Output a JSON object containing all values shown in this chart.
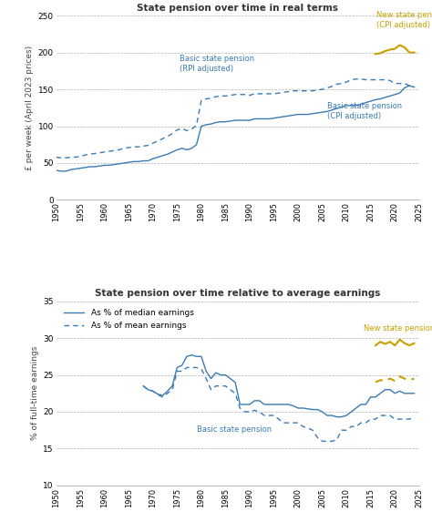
{
  "title1": "State pension over time in real terms",
  "title2": "State pension over time relative to average earnings",
  "ylabel1": "£ per week (April 2023 prices)",
  "ylabel2": "% of full-time earnings",
  "blue_color": "#3a7ab5",
  "gold_color": "#c8a000",
  "xlim": [
    1950,
    2025
  ],
  "ylim1": [
    0,
    250
  ],
  "ylim2": [
    10,
    35
  ],
  "yticks1": [
    0,
    50,
    100,
    150,
    200,
    250
  ],
  "yticks2": [
    10,
    15,
    20,
    25,
    30,
    35
  ],
  "xticks": [
    1950,
    1955,
    1960,
    1965,
    1970,
    1975,
    1980,
    1985,
    1990,
    1995,
    2000,
    2005,
    2010,
    2015,
    2020,
    2025
  ],
  "basic_cpi_x": [
    1950,
    1951,
    1952,
    1953,
    1954,
    1955,
    1956,
    1957,
    1958,
    1959,
    1960,
    1961,
    1962,
    1963,
    1964,
    1965,
    1966,
    1967,
    1968,
    1969,
    1970,
    1971,
    1972,
    1973,
    1974,
    1975,
    1976,
    1977,
    1978,
    1979,
    1980,
    1981,
    1982,
    1983,
    1984,
    1985,
    1986,
    1987,
    1988,
    1989,
    1990,
    1991,
    1992,
    1993,
    1994,
    1995,
    1996,
    1997,
    1998,
    1999,
    2000,
    2001,
    2002,
    2003,
    2004,
    2005,
    2006,
    2007,
    2008,
    2009,
    2010,
    2011,
    2012,
    2013,
    2014,
    2015,
    2016,
    2017,
    2018,
    2019,
    2020,
    2021,
    2022,
    2023,
    2024
  ],
  "basic_cpi_y": [
    40,
    39,
    39,
    41,
    42,
    43,
    44,
    45,
    45,
    46,
    47,
    47,
    48,
    49,
    50,
    51,
    52,
    52,
    53,
    53,
    56,
    58,
    60,
    62,
    65,
    68,
    70,
    68,
    70,
    75,
    100,
    102,
    103,
    105,
    106,
    106,
    107,
    108,
    108,
    108,
    108,
    110,
    110,
    110,
    110,
    111,
    112,
    113,
    114,
    115,
    116,
    116,
    116,
    117,
    118,
    119,
    120,
    122,
    124,
    126,
    128,
    128,
    128,
    130,
    132,
    134,
    136,
    137,
    139,
    141,
    143,
    145,
    152,
    155,
    153
  ],
  "basic_rpi_x": [
    1950,
    1951,
    1952,
    1953,
    1954,
    1955,
    1956,
    1957,
    1958,
    1959,
    1960,
    1961,
    1962,
    1963,
    1964,
    1965,
    1966,
    1967,
    1968,
    1969,
    1970,
    1971,
    1972,
    1973,
    1974,
    1975,
    1976,
    1977,
    1978,
    1979,
    1980,
    1981,
    1982,
    1983,
    1984,
    1985,
    1986,
    1987,
    1988,
    1989,
    1990,
    1991,
    1992,
    1993,
    1994,
    1995,
    1996,
    1997,
    1998,
    1999,
    2000,
    2001,
    2002,
    2003,
    2004,
    2005,
    2006,
    2007,
    2008,
    2009,
    2010,
    2011,
    2012,
    2013,
    2014,
    2015,
    2016,
    2017,
    2018,
    2019,
    2020,
    2021,
    2022,
    2023,
    2024
  ],
  "basic_rpi_y": [
    58,
    57,
    57,
    58,
    58,
    59,
    61,
    62,
    63,
    64,
    65,
    66,
    67,
    68,
    70,
    71,
    72,
    72,
    73,
    74,
    77,
    80,
    83,
    86,
    90,
    95,
    97,
    94,
    96,
    101,
    135,
    137,
    138,
    140,
    141,
    141,
    142,
    143,
    143,
    143,
    142,
    144,
    144,
    144,
    144,
    144,
    145,
    146,
    147,
    148,
    148,
    148,
    148,
    148,
    149,
    150,
    152,
    154,
    157,
    158,
    160,
    163,
    164,
    164,
    163,
    163,
    163,
    163,
    163,
    162,
    158,
    158,
    158,
    155,
    153
  ],
  "new_pension_cpi_x": [
    2016,
    2017,
    2018,
    2019,
    2020,
    2021,
    2022,
    2023,
    2024
  ],
  "new_pension_cpi_y": [
    198,
    199,
    202,
    204,
    205,
    210,
    207,
    200,
    200
  ],
  "basic_median_x": [
    1968,
    1969,
    1970,
    1971,
    1972,
    1973,
    1974,
    1975,
    1976,
    1977,
    1978,
    1979,
    1980,
    1981,
    1982,
    1983,
    1984,
    1985,
    1986,
    1987,
    1988,
    1989,
    1990,
    1991,
    1992,
    1993,
    1994,
    1995,
    1996,
    1997,
    1998,
    1999,
    2000,
    2001,
    2002,
    2003,
    2004,
    2005,
    2006,
    2007,
    2008,
    2009,
    2010,
    2011,
    2012,
    2013,
    2014,
    2015,
    2016,
    2017,
    2018,
    2019,
    2020,
    2021,
    2022,
    2023,
    2024
  ],
  "basic_median_y": [
    23.5,
    23.0,
    22.8,
    22.4,
    22.2,
    22.8,
    23.5,
    26.0,
    26.3,
    27.5,
    27.7,
    27.5,
    27.5,
    25.5,
    24.5,
    25.3,
    25.0,
    25.0,
    24.5,
    24.0,
    21.0,
    21.0,
    21.0,
    21.5,
    21.5,
    21.0,
    21.0,
    21.0,
    21.0,
    21.0,
    21.0,
    20.8,
    20.5,
    20.5,
    20.4,
    20.3,
    20.3,
    20.0,
    19.5,
    19.5,
    19.3,
    19.3,
    19.5,
    20.0,
    20.5,
    21.0,
    21.0,
    22.0,
    22.0,
    22.5,
    23.0,
    23.0,
    22.5,
    22.8,
    22.5,
    22.5,
    22.5
  ],
  "basic_mean_x": [
    1968,
    1969,
    1970,
    1971,
    1972,
    1973,
    1974,
    1975,
    1976,
    1977,
    1978,
    1979,
    1980,
    1981,
    1982,
    1983,
    1984,
    1985,
    1986,
    1987,
    1988,
    1989,
    1990,
    1991,
    1992,
    1993,
    1994,
    1995,
    1996,
    1997,
    1998,
    1999,
    2000,
    2001,
    2002,
    2003,
    2004,
    2005,
    2006,
    2007,
    2008,
    2009,
    2010,
    2011,
    2012,
    2013,
    2014,
    2015,
    2016,
    2017,
    2018,
    2019,
    2020,
    2021,
    2022,
    2023,
    2024
  ],
  "basic_mean_y": [
    23.5,
    23.0,
    22.8,
    22.3,
    22.0,
    22.5,
    23.0,
    25.5,
    25.5,
    26.0,
    26.0,
    26.0,
    25.8,
    24.5,
    23.0,
    23.5,
    23.5,
    23.5,
    23.0,
    22.5,
    20.5,
    20.0,
    20.0,
    20.2,
    20.0,
    19.5,
    19.5,
    19.5,
    19.0,
    18.5,
    18.5,
    18.5,
    18.5,
    18.0,
    17.8,
    17.5,
    16.5,
    16.0,
    16.0,
    16.0,
    16.2,
    17.5,
    17.5,
    18.0,
    18.0,
    18.5,
    18.5,
    19.0,
    19.0,
    19.5,
    19.5,
    19.5,
    19.0,
    19.0,
    19.0,
    19.0,
    19.3
  ],
  "new_median_x": [
    2016,
    2017,
    2018,
    2019,
    2020,
    2021,
    2022,
    2023,
    2024
  ],
  "new_median_y": [
    29.0,
    29.5,
    29.2,
    29.5,
    29.0,
    29.8,
    29.3,
    29.0,
    29.3
  ],
  "new_mean_x": [
    2016,
    2017,
    2018,
    2019,
    2020,
    2021,
    2022,
    2023,
    2024
  ],
  "new_mean_y": [
    24.0,
    24.3,
    24.2,
    24.5,
    24.2,
    24.8,
    24.5,
    24.3,
    24.5
  ]
}
